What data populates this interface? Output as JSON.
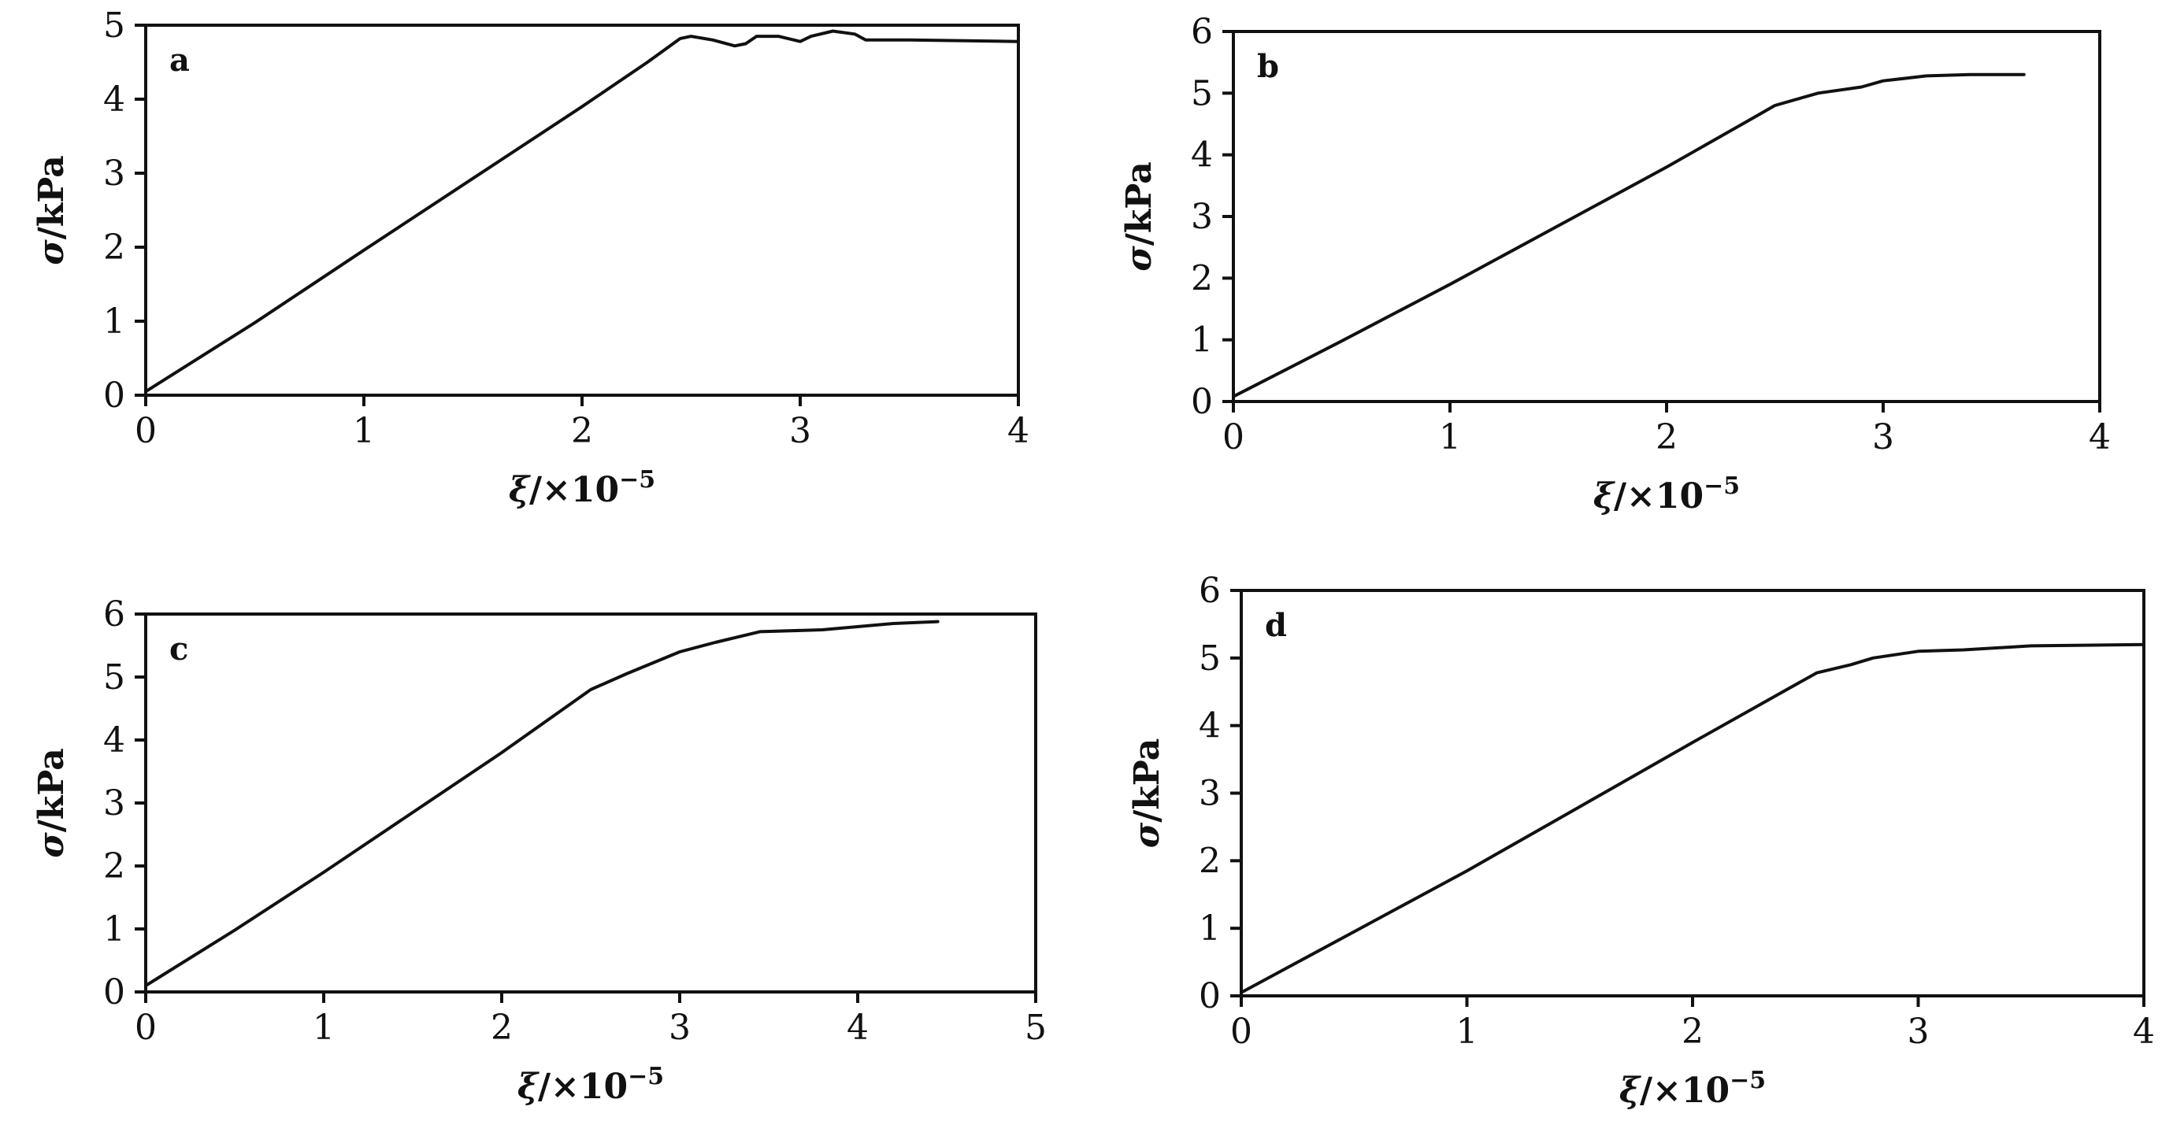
{
  "chart_data": [
    {
      "type": "line",
      "panel_label": "a",
      "xlabel_var": "ξ",
      "xlabel_unit": "/×10",
      "xlabel_exp": "−5",
      "ylabel_var": "σ",
      "ylabel_unit": "/kPa",
      "xlim": [
        0,
        4
      ],
      "ylim": [
        0,
        5
      ],
      "xticks": [
        0,
        1,
        2,
        3,
        4
      ],
      "yticks": [
        0,
        1,
        2,
        3,
        4,
        5
      ],
      "xtick_labels": [
        "0",
        "1",
        "2",
        "3",
        "4"
      ],
      "ytick_labels": [
        "0",
        "1",
        "2",
        "3",
        "4",
        "5"
      ],
      "grid": false,
      "series": [
        {
          "x": [
            0,
            0.5,
            1.0,
            1.5,
            2.0,
            2.3,
            2.45,
            2.5,
            2.6,
            2.7,
            2.75,
            2.8,
            2.9,
            3.0,
            3.05,
            3.15,
            3.25,
            3.3,
            3.5,
            4.0
          ],
          "y": [
            0.05,
            0.98,
            1.96,
            2.93,
            3.9,
            4.5,
            4.82,
            4.85,
            4.8,
            4.72,
            4.75,
            4.85,
            4.85,
            4.78,
            4.85,
            4.92,
            4.88,
            4.8,
            4.8,
            4.78
          ]
        }
      ]
    },
    {
      "type": "line",
      "panel_label": "b",
      "xlabel_var": "ξ",
      "xlabel_unit": "/×10",
      "xlabel_exp": "−5",
      "ylabel_var": "σ",
      "ylabel_unit": "/kPa",
      "xlim": [
        0,
        4
      ],
      "ylim": [
        0,
        6
      ],
      "xticks": [
        0,
        1,
        2,
        3,
        4
      ],
      "yticks": [
        0,
        1,
        2,
        3,
        4,
        5,
        6
      ],
      "xtick_labels": [
        "0",
        "1",
        "2",
        "3",
        "4"
      ],
      "ytick_labels": [
        "0",
        "1",
        "2",
        "3",
        "4",
        "5",
        "6"
      ],
      "grid": false,
      "series": [
        {
          "x": [
            0,
            0.5,
            1.0,
            1.5,
            2.0,
            2.4,
            2.5,
            2.7,
            2.9,
            3.0,
            3.2,
            3.4,
            3.65
          ],
          "y": [
            0.08,
            0.98,
            1.9,
            2.85,
            3.8,
            4.6,
            4.8,
            5.0,
            5.1,
            5.2,
            5.28,
            5.3,
            5.3
          ]
        }
      ]
    },
    {
      "type": "line",
      "panel_label": "c",
      "xlabel_var": "ξ",
      "xlabel_unit": "/×10",
      "xlabel_exp": "−5",
      "ylabel_var": "σ",
      "ylabel_unit": "/kPa",
      "xlim": [
        0,
        5
      ],
      "ylim": [
        0,
        6
      ],
      "xticks": [
        0,
        1,
        2,
        3,
        4,
        5
      ],
      "yticks": [
        0,
        1,
        2,
        3,
        4,
        5,
        6
      ],
      "xtick_labels": [
        "0",
        "1",
        "2",
        "3",
        "4",
        "5"
      ],
      "ytick_labels": [
        "0",
        "1",
        "2",
        "3",
        "4",
        "5",
        "6"
      ],
      "grid": false,
      "series": [
        {
          "x": [
            0,
            0.5,
            1.0,
            1.5,
            2.0,
            2.4,
            2.5,
            2.7,
            3.0,
            3.2,
            3.45,
            3.8,
            4.2,
            4.45
          ],
          "y": [
            0.1,
            0.98,
            1.9,
            2.85,
            3.8,
            4.6,
            4.8,
            5.05,
            5.4,
            5.55,
            5.72,
            5.75,
            5.85,
            5.88
          ]
        }
      ]
    },
    {
      "type": "line",
      "panel_label": "d",
      "xlabel_var": "ξ",
      "xlabel_unit": "/×10",
      "xlabel_exp": "−5",
      "ylabel_var": "σ",
      "ylabel_unit": "/kPa",
      "xlim": [
        0,
        4
      ],
      "ylim": [
        0,
        6
      ],
      "xticks": [
        0,
        1,
        2,
        3,
        4
      ],
      "yticks": [
        0,
        1,
        2,
        3,
        4,
        5,
        6
      ],
      "xtick_labels": [
        "0",
        "1",
        "2",
        "3",
        "4"
      ],
      "ytick_labels": [
        "0",
        "1",
        "2",
        "3",
        "4",
        "5",
        "6"
      ],
      "grid": false,
      "series": [
        {
          "x": [
            0,
            0.5,
            1.0,
            1.5,
            2.0,
            2.4,
            2.55,
            2.7,
            2.8,
            3.0,
            3.2,
            3.5,
            4.0
          ],
          "y": [
            0.05,
            0.95,
            1.85,
            2.8,
            3.75,
            4.5,
            4.78,
            4.9,
            5.0,
            5.1,
            5.12,
            5.18,
            5.2
          ]
        }
      ]
    }
  ]
}
